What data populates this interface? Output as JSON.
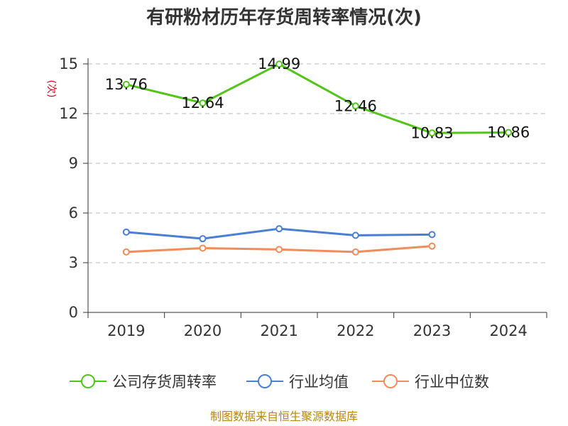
{
  "chart_data": {
    "type": "line",
    "title": "有研粉材历年存货周转率情况(次)",
    "ylabel": "(次)",
    "xlabel": "",
    "categories": [
      "2019",
      "2020",
      "2021",
      "2022",
      "2023",
      "2024"
    ],
    "ylim": [
      0,
      15
    ],
    "yticks": [
      0,
      3,
      6,
      9,
      12,
      15
    ],
    "grid": true,
    "legend_position": "bottom",
    "series": [
      {
        "name": "公司存货周转率",
        "color": "#52c41a",
        "values": [
          13.76,
          12.64,
          14.99,
          12.46,
          10.83,
          10.86
        ],
        "labels": [
          "13.76",
          "12.64",
          "14.99",
          "12.46",
          "10.83",
          "10.86"
        ]
      },
      {
        "name": "行业均值",
        "color": "#4a7fd4",
        "values": [
          4.85,
          4.45,
          5.05,
          4.65,
          4.7,
          null
        ]
      },
      {
        "name": "行业中位数",
        "color": "#f28c5a",
        "values": [
          3.65,
          3.88,
          3.8,
          3.65,
          4.0,
          null
        ]
      }
    ]
  },
  "footer": {
    "source": "制图数据来自恒生聚源数据库"
  }
}
